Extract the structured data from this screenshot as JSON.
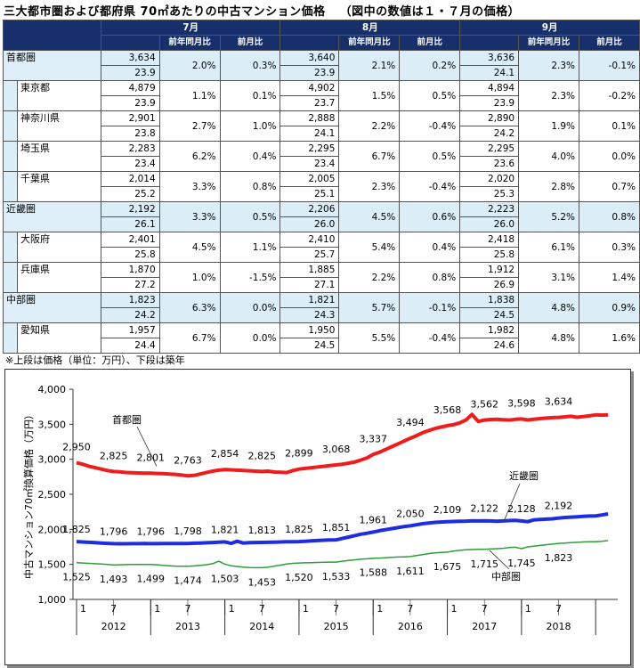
{
  "title": "三大都市圏および都府県 70㎡あたりの中古マンション価格",
  "title_note": "（図中の数値は１・７月の価格）",
  "table": {
    "months": [
      "7月",
      "8月",
      "9月"
    ],
    "subcols": [
      "前年同月比",
      "前月比"
    ],
    "rows": [
      {
        "name": "首都圏",
        "level": 0,
        "data": [
          [
            "3,634",
            "23.9",
            "2.0%",
            "0.3%"
          ],
          [
            "3,640",
            "23.9",
            "2.1%",
            "0.2%"
          ],
          [
            "3,636",
            "24.1",
            "2.3%",
            "-0.1%"
          ]
        ]
      },
      {
        "name": "東京都",
        "level": 1,
        "data": [
          [
            "4,879",
            "23.9",
            "1.1%",
            "0.1%"
          ],
          [
            "4,902",
            "23.7",
            "1.5%",
            "0.5%"
          ],
          [
            "4,894",
            "23.9",
            "2.3%",
            "-0.2%"
          ]
        ]
      },
      {
        "name": "神奈川県",
        "level": 1,
        "data": [
          [
            "2,901",
            "23.8",
            "2.7%",
            "1.0%"
          ],
          [
            "2,888",
            "24.1",
            "2.2%",
            "-0.4%"
          ],
          [
            "2,890",
            "24.2",
            "1.9%",
            "0.1%"
          ]
        ]
      },
      {
        "name": "埼玉県",
        "level": 1,
        "data": [
          [
            "2,283",
            "23.4",
            "6.2%",
            "0.4%"
          ],
          [
            "2,295",
            "23.4",
            "6.7%",
            "0.5%"
          ],
          [
            "2,295",
            "23.6",
            "4.0%",
            "0.0%"
          ]
        ]
      },
      {
        "name": "千葉県",
        "level": 1,
        "data": [
          [
            "2,014",
            "25.2",
            "3.3%",
            "0.8%"
          ],
          [
            "2,005",
            "25.1",
            "2.3%",
            "-0.4%"
          ],
          [
            "2,020",
            "25.3",
            "2.8%",
            "0.7%"
          ]
        ]
      },
      {
        "name": "近畿圏",
        "level": 0,
        "data": [
          [
            "2,192",
            "26.1",
            "3.3%",
            "0.5%"
          ],
          [
            "2,206",
            "26.0",
            "4.5%",
            "0.6%"
          ],
          [
            "2,223",
            "26.0",
            "5.2%",
            "0.8%"
          ]
        ]
      },
      {
        "name": "大阪府",
        "level": 1,
        "data": [
          [
            "2,401",
            "25.8",
            "4.5%",
            "1.1%"
          ],
          [
            "2,410",
            "25.7",
            "5.4%",
            "0.4%"
          ],
          [
            "2,418",
            "25.8",
            "6.1%",
            "0.3%"
          ]
        ]
      },
      {
        "name": "兵庫県",
        "level": 1,
        "data": [
          [
            "1,870",
            "27.2",
            "1.0%",
            "-1.5%"
          ],
          [
            "1,885",
            "27.1",
            "2.2%",
            "0.8%"
          ],
          [
            "1,912",
            "26.9",
            "3.1%",
            "1.4%"
          ]
        ]
      },
      {
        "name": "中部圏",
        "level": 0,
        "data": [
          [
            "1,823",
            "24.2",
            "6.3%",
            "0.0%"
          ],
          [
            "1,821",
            "24.3",
            "5.7%",
            "-0.1%"
          ],
          [
            "1,838",
            "24.5",
            "4.8%",
            "0.9%"
          ]
        ]
      },
      {
        "name": "愛知県",
        "level": 1,
        "data": [
          [
            "1,957",
            "24.4",
            "6.7%",
            "0.0%"
          ],
          [
            "1,950",
            "24.5",
            "5.5%",
            "-0.4%"
          ],
          [
            "1,982",
            "24.6",
            "4.8%",
            "1.6%"
          ]
        ]
      }
    ]
  },
  "note": "※上段は価格（単位：万円）、下段は築年",
  "chart_data": {
    "type": "line",
    "ylabel": "中古マンション70㎡換算価格（万円）",
    "ylim": [
      1000,
      4000
    ],
    "yticks": [
      "1,000",
      "1,500",
      "2,000",
      "2,500",
      "3,000",
      "3,500",
      "4,000"
    ],
    "xtick_labels": [
      "1",
      "7",
      "1",
      "7",
      "1",
      "7",
      "1",
      "7",
      "1",
      "7",
      "1",
      "7",
      "1",
      "7"
    ],
    "year_labels": [
      "2012",
      "2013",
      "2014",
      "2015",
      "2016",
      "2017",
      "2018"
    ],
    "x_start": "2012-01",
    "x_end": "2018-07",
    "series": [
      {
        "name": "首都圏",
        "color": "#ee1c1c",
        "width": 4,
        "labels": [
          "2,950",
          "2,825",
          "2,801",
          "2,763",
          "2,854",
          "2,825",
          "2,899",
          "3,068",
          "3,337",
          "3,494",
          "3,568",
          "3,562",
          "3,598",
          "3,634"
        ],
        "values": [
          2950,
          2930,
          2900,
          2880,
          2860,
          2840,
          2825,
          2820,
          2812,
          2808,
          2805,
          2803,
          2801,
          2798,
          2795,
          2790,
          2785,
          2775,
          2763,
          2770,
          2790,
          2810,
          2830,
          2845,
          2854,
          2850,
          2845,
          2840,
          2835,
          2830,
          2825,
          2830,
          2818,
          2815,
          2810,
          2840,
          2860,
          2870,
          2880,
          2890,
          2899,
          2910,
          2920,
          2930,
          2945,
          2960,
          2990,
          3020,
          3068,
          3100,
          3140,
          3180,
          3220,
          3260,
          3300,
          3337,
          3380,
          3410,
          3440,
          3460,
          3480,
          3494,
          3520,
          3560,
          3640,
          3540,
          3560,
          3568,
          3570,
          3565,
          3560,
          3570,
          3575,
          3562,
          3570,
          3580,
          3588,
          3595,
          3598,
          3605,
          3615,
          3600,
          3610,
          3620,
          3634,
          3630,
          3635
        ]
      },
      {
        "name": "近畿圏",
        "color": "#1f2de0",
        "width": 4,
        "labels": [
          "1,825",
          "1,796",
          "1,796",
          "1,798",
          "1,821",
          "1,813",
          "1,825",
          "1,851",
          "1,961",
          "2,050",
          "2,109",
          "2,122",
          "2,128",
          "2,192"
        ],
        "values": [
          1825,
          1820,
          1815,
          1810,
          1805,
          1800,
          1796,
          1795,
          1795,
          1796,
          1796,
          1797,
          1796,
          1796,
          1797,
          1798,
          1798,
          1798,
          1798,
          1802,
          1805,
          1808,
          1812,
          1816,
          1821,
          1800,
          1830,
          1805,
          1810,
          1812,
          1813,
          1815,
          1818,
          1820,
          1822,
          1824,
          1825,
          1830,
          1835,
          1840,
          1845,
          1848,
          1851,
          1870,
          1890,
          1910,
          1930,
          1945,
          1961,
          1980,
          1995,
          2010,
          2025,
          2040,
          2050,
          2065,
          2080,
          2090,
          2100,
          2105,
          2109,
          2112,
          2115,
          2118,
          2122,
          2120,
          2122,
          2120,
          2115,
          2120,
          2125,
          2128,
          2120,
          2110,
          2135,
          2140,
          2145,
          2150,
          2160,
          2170,
          2175,
          2180,
          2185,
          2190,
          2192,
          2205,
          2220
        ]
      },
      {
        "name": "中部圏",
        "color": "#2e9e3a",
        "width": 1.5,
        "labels": [
          "1,525",
          "1,493",
          "1,499",
          "1,474",
          "1,503",
          "1,453",
          "1,520",
          "1,533",
          "1,588",
          "1,611",
          "1,675",
          "1,715",
          "1,745",
          "1,823"
        ],
        "values": [
          1525,
          1520,
          1515,
          1510,
          1505,
          1500,
          1493,
          1495,
          1497,
          1498,
          1499,
          1500,
          1499,
          1495,
          1485,
          1480,
          1475,
          1474,
          1474,
          1478,
          1485,
          1495,
          1510,
          1545,
          1503,
          1480,
          1470,
          1460,
          1455,
          1453,
          1453,
          1460,
          1475,
          1490,
          1505,
          1515,
          1520,
          1522,
          1525,
          1528,
          1530,
          1532,
          1533,
          1545,
          1555,
          1565,
          1575,
          1580,
          1588,
          1590,
          1595,
          1600,
          1605,
          1608,
          1611,
          1625,
          1640,
          1655,
          1665,
          1670,
          1675,
          1690,
          1700,
          1708,
          1712,
          1715,
          1715,
          1720,
          1725,
          1730,
          1740,
          1745,
          1725,
          1750,
          1760,
          1770,
          1780,
          1790,
          1800,
          1805,
          1810,
          1815,
          1820,
          1823,
          1823,
          1830,
          1840
        ]
      }
    ]
  }
}
